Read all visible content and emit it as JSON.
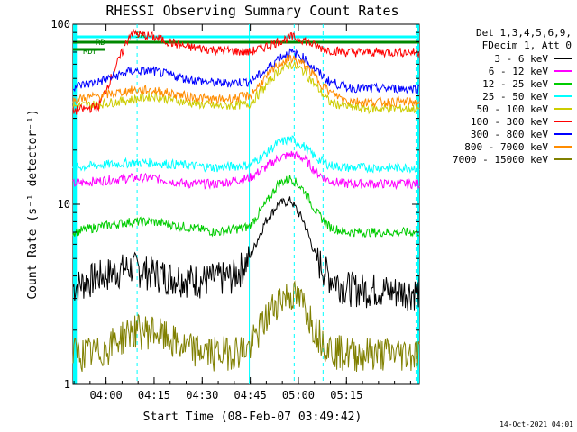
{
  "chart_data": {
    "type": "line",
    "title": "RHESSI Observing Summary Count Rates",
    "xlabel": "Start Time (08-Feb-07 03:49:42)",
    "ylabel": "Count Rate (s⁻¹ detector⁻¹)",
    "yscale": "log",
    "ylim": [
      1,
      100
    ],
    "xlim_minutes": [
      0,
      108
    ],
    "x_ticks": [
      {
        "label": "04:00",
        "minute": 10.3
      },
      {
        "label": "04:15",
        "minute": 25.3
      },
      {
        "label": "04:30",
        "minute": 40.3
      },
      {
        "label": "04:45",
        "minute": 55.3
      },
      {
        "label": "05:00",
        "minute": 70.3
      },
      {
        "label": "05:15",
        "minute": 85.3
      }
    ],
    "y_ticks": [
      {
        "label": "1",
        "value": 1
      },
      {
        "label": "10",
        "value": 10
      },
      {
        "label": "100",
        "value": 100
      }
    ],
    "legend_header": [
      "Det 1,3,4,5,6,9,",
      "FDecim 1, Att 0"
    ],
    "series": [
      {
        "name": "3 - 6 keV",
        "color": "#000000",
        "minutes": [
          0,
          8,
          18,
          30,
          40,
          50,
          55,
          60,
          64,
          68,
          72,
          76,
          80,
          85,
          90,
          95,
          100,
          108
        ],
        "values": [
          3.5,
          4,
          4.5,
          4,
          3.8,
          4,
          5,
          8,
          10,
          10.5,
          8,
          5,
          4,
          3.5,
          3.4,
          3.4,
          3.3,
          3.3
        ]
      },
      {
        "name": "6 - 12 keV",
        "color": "#ff00ff",
        "minutes": [
          0,
          8,
          18,
          25,
          35,
          45,
          55,
          60,
          64,
          68,
          72,
          76,
          80,
          85,
          90,
          95,
          100,
          108
        ],
        "values": [
          13,
          13.5,
          14,
          14,
          13,
          13,
          14,
          16,
          18,
          19,
          18,
          15,
          13.5,
          13,
          13,
          13,
          13,
          13
        ]
      },
      {
        "name": "12 - 25 keV",
        "color": "#00cc00",
        "minutes": [
          0,
          8,
          18,
          25,
          35,
          45,
          55,
          60,
          64,
          68,
          72,
          76,
          80,
          85,
          90,
          95,
          100,
          108
        ],
        "values": [
          7,
          7.5,
          8,
          8,
          7.5,
          7,
          7.5,
          10,
          13,
          14,
          12,
          9,
          7.5,
          7,
          7,
          7,
          7,
          7
        ]
      },
      {
        "name": "25 - 50 keV",
        "color": "#00ffff",
        "minutes": [
          0,
          8,
          18,
          25,
          35,
          45,
          55,
          60,
          64,
          68,
          72,
          76,
          80,
          85,
          90,
          95,
          100,
          108
        ],
        "values": [
          16,
          16.5,
          17,
          17,
          16.5,
          16,
          16.5,
          19,
          22,
          23,
          21,
          18,
          16.5,
          16,
          16,
          16,
          16,
          16
        ]
      },
      {
        "name": "50 - 100 keV",
        "color": "#cccc00",
        "minutes": [
          0,
          8,
          18,
          25,
          35,
          45,
          55,
          60,
          64,
          68,
          72,
          76,
          80,
          85,
          90,
          95,
          100,
          108
        ],
        "values": [
          35,
          36,
          38,
          40,
          37,
          35,
          36,
          45,
          55,
          60,
          55,
          45,
          37,
          35,
          34,
          34,
          34,
          34
        ]
      },
      {
        "name": "100 - 300 keV",
        "color": "#ff0000",
        "minutes": [
          0,
          8,
          18,
          25,
          35,
          45,
          55,
          60,
          64,
          68,
          72,
          76,
          80,
          85,
          90,
          95,
          100,
          108
        ],
        "values": [
          33,
          35,
          90,
          85,
          75,
          72,
          70,
          75,
          80,
          85,
          82,
          75,
          72,
          70,
          70,
          70,
          70,
          70
        ]
      },
      {
        "name": "300 - 800 keV",
        "color": "#0000ff",
        "minutes": [
          0,
          8,
          18,
          25,
          35,
          45,
          55,
          60,
          64,
          68,
          72,
          76,
          80,
          85,
          90,
          95,
          100,
          108
        ],
        "values": [
          45,
          48,
          55,
          55,
          50,
          47,
          48,
          55,
          65,
          70,
          65,
          55,
          48,
          45,
          44,
          44,
          44,
          44
        ]
      },
      {
        "name": "800 - 7000 keV",
        "color": "#ff8c00",
        "minutes": [
          0,
          8,
          18,
          25,
          35,
          45,
          55,
          60,
          64,
          68,
          72,
          76,
          80,
          85,
          90,
          95,
          100,
          108
        ],
        "values": [
          38,
          40,
          43,
          43,
          40,
          38,
          40,
          50,
          60,
          65,
          60,
          50,
          42,
          38,
          37,
          37,
          37,
          37
        ]
      },
      {
        "name": "7000 - 15000 keV",
        "color": "#808000",
        "minutes": [
          0,
          8,
          18,
          25,
          35,
          45,
          55,
          60,
          64,
          68,
          72,
          76,
          80,
          85,
          90,
          95,
          100,
          108
        ],
        "values": [
          1.5,
          1.5,
          2,
          2,
          1.6,
          1.5,
          1.6,
          2.3,
          3,
          3.2,
          2.8,
          2,
          1.6,
          1.5,
          1.5,
          1.5,
          1.5,
          1.5
        ]
      }
    ],
    "annotations": [
      "RDF",
      "RD",
      "SA"
    ]
  },
  "timestamp": "14-Oct-2021 04:01"
}
